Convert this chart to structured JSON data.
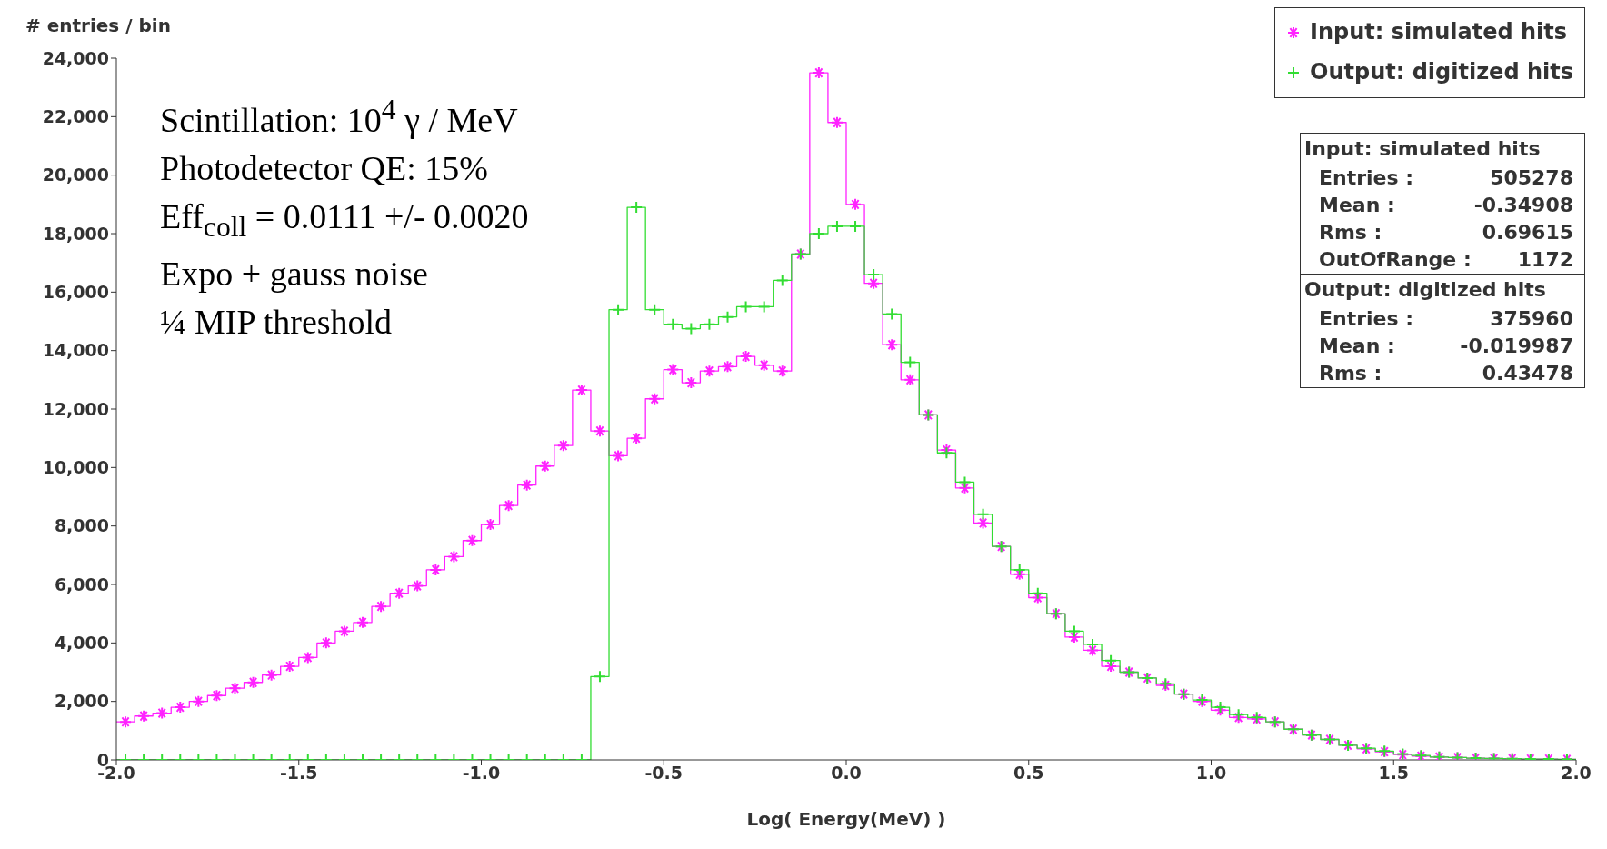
{
  "chart_data": {
    "type": "histogram",
    "ylabel": "# entries / bin",
    "xlabel": "Log( Energy(MeV) )",
    "bins": [
      -2,
      -1.95,
      -1.9,
      -1.85,
      -1.8,
      -1.75,
      -1.7,
      -1.65,
      -1.6,
      -1.55,
      -1.5,
      -1.45,
      -1.4,
      -1.35,
      -1.3,
      -1.25,
      -1.2,
      -1.15,
      -1.1,
      -1.05,
      -1,
      -0.95,
      -0.9,
      -0.85,
      -0.8,
      -0.75,
      -0.7,
      -0.65,
      -0.6,
      -0.55,
      -0.5,
      -0.45,
      -0.4,
      -0.35,
      -0.3,
      -0.25,
      -0.2,
      -0.15,
      -0.1,
      -0.05,
      0,
      0.05,
      0.1,
      0.15,
      0.2,
      0.25,
      0.3,
      0.35,
      0.4,
      0.45,
      0.5,
      0.55,
      0.6,
      0.65,
      0.7,
      0.75,
      0.8,
      0.85,
      0.9,
      0.95,
      1,
      1.05,
      1.1,
      1.15,
      1.2,
      1.25,
      1.3,
      1.35,
      1.4,
      1.45,
      1.5,
      1.55,
      1.6,
      1.65,
      1.7,
      1.75,
      1.8,
      1.85,
      1.9,
      1.95,
      2
    ],
    "series": [
      {
        "name": "Input: simulated hits",
        "color": "#ff22ff",
        "marker": "star",
        "values": [
          1300,
          1500,
          1600,
          1800,
          2000,
          2200,
          2450,
          2650,
          2900,
          3200,
          3500,
          4000,
          4400,
          4700,
          5250,
          5700,
          5950,
          6500,
          6950,
          7500,
          8050,
          8700,
          9400,
          10050,
          10750,
          12650,
          11250,
          10400,
          11000,
          12350,
          13350,
          12900,
          13300,
          13450,
          13800,
          13500,
          13300,
          17300,
          23500,
          21800,
          19000,
          16300,
          14200,
          13000,
          11800,
          10600,
          9300,
          8100,
          7300,
          6350,
          5550,
          5000,
          4200,
          3750,
          3200,
          3000,
          2800,
          2550,
          2250,
          2000,
          1700,
          1450,
          1400,
          1300,
          1050,
          850,
          700,
          500,
          380,
          280,
          180,
          130,
          100,
          80,
          60,
          50,
          40,
          30,
          30,
          20
        ]
      },
      {
        "name": "Output: digitized hits",
        "color": "#33dd33",
        "marker": "cross",
        "values": [
          0,
          0,
          0,
          0,
          0,
          0,
          0,
          0,
          0,
          0,
          0,
          0,
          0,
          0,
          0,
          0,
          0,
          0,
          0,
          0,
          0,
          0,
          0,
          0,
          0,
          0,
          2850,
          15400,
          18900,
          15400,
          14900,
          14750,
          14900,
          15150,
          15500,
          15500,
          16400,
          17300,
          18000,
          18250,
          18250,
          16600,
          15250,
          13600,
          11800,
          10500,
          9500,
          8400,
          7300,
          6500,
          5700,
          5000,
          4400,
          3950,
          3400,
          3000,
          2800,
          2600,
          2250,
          2050,
          1800,
          1550,
          1450,
          1300,
          1050,
          850,
          700,
          500,
          400,
          300,
          200,
          150,
          100,
          80,
          60,
          50,
          40,
          30,
          30,
          20
        ]
      }
    ],
    "xlim": [
      -2,
      2
    ],
    "xticks": [
      {
        "value": -2,
        "label": "-2.0"
      },
      -1.5,
      {
        "value": -1,
        "label": "-1.0"
      },
      -0.5,
      {
        "value": 0,
        "label": "0.0"
      },
      0.5,
      {
        "value": 1,
        "label": "1.0"
      },
      1.5,
      {
        "value": 2,
        "label": "2.0"
      }
    ],
    "ylim": [
      0,
      24000
    ],
    "yticks": [
      0,
      {
        "value": 2000,
        "label": "2,000"
      },
      {
        "value": 4000,
        "label": "4,000"
      },
      {
        "value": 6000,
        "label": "6,000"
      },
      {
        "value": 8000,
        "label": "8,000"
      },
      {
        "value": 10000,
        "label": "10,000"
      },
      {
        "value": 12000,
        "label": "12,000"
      },
      {
        "value": 14000,
        "label": "14,000"
      },
      {
        "value": 16000,
        "label": "16,000"
      },
      {
        "value": 18000,
        "label": "18,000"
      },
      {
        "value": 20000,
        "label": "20,000"
      },
      {
        "value": 22000,
        "label": "22,000"
      },
      {
        "value": 24000,
        "label": "24,000"
      }
    ],
    "legend": "top right",
    "annotations": [
      "Scintillation: 10$^{4}$ γ / MeV",
      "Photodetector QE:  15%",
      "Eff$_{coll}$ = 0.0111 +/- 0.0020",
      "Expo + gauss noise",
      "¼ MIP threshold",
      "Input: simulated hits",
      "Entries :  505278",
      "Mean :  -0.34908",
      "Rms :  0.69615",
      "OutOfRange :  1172",
      "Output: digitized hits",
      "Entries :  375960",
      "Mean :  -0.019987",
      "Rms :  0.43478"
    ]
  }
}
